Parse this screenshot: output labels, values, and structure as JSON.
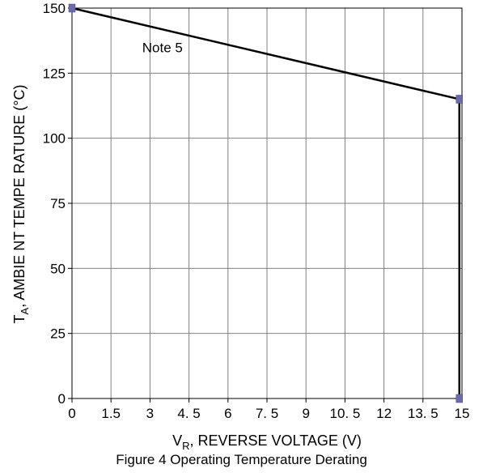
{
  "chart_data": {
    "type": "line",
    "x": [
      0,
      14.9,
      14.9
    ],
    "y": [
      150,
      115,
      0
    ],
    "xlim": [
      0,
      15
    ],
    "ylim": [
      0,
      150
    ],
    "x_ticks": [
      0,
      1.5,
      3,
      4.5,
      6,
      7.5,
      9,
      10.5,
      12,
      13.5,
      15
    ],
    "x_tick_labels": [
      "0",
      "1.5",
      "3",
      "4. 5",
      "6",
      "7. 5",
      "9",
      "10. 5",
      "12",
      "13. 5",
      "15"
    ],
    "y_ticks": [
      0,
      25,
      50,
      75,
      100,
      125,
      150
    ],
    "y_tick_labels": [
      "0",
      "25",
      "50",
      "75",
      "100",
      "125",
      "150"
    ],
    "xlabel": {
      "main": "V",
      "sub": "R",
      "rest": ", REVERSE VOLTAGE (V)"
    },
    "ylabel": {
      "main": "T",
      "sub": "A",
      "rest": ", AMBIE NT TEMPE RATURE (°C)"
    },
    "annotation": {
      "text": "Note 5",
      "x": 2.7,
      "y": 133
    },
    "grid": true,
    "colors": {
      "line": "#000000",
      "marker": "#6b6bab",
      "grid": "#808080"
    }
  },
  "caption": "Figure 4 Operating Temperature Derating"
}
